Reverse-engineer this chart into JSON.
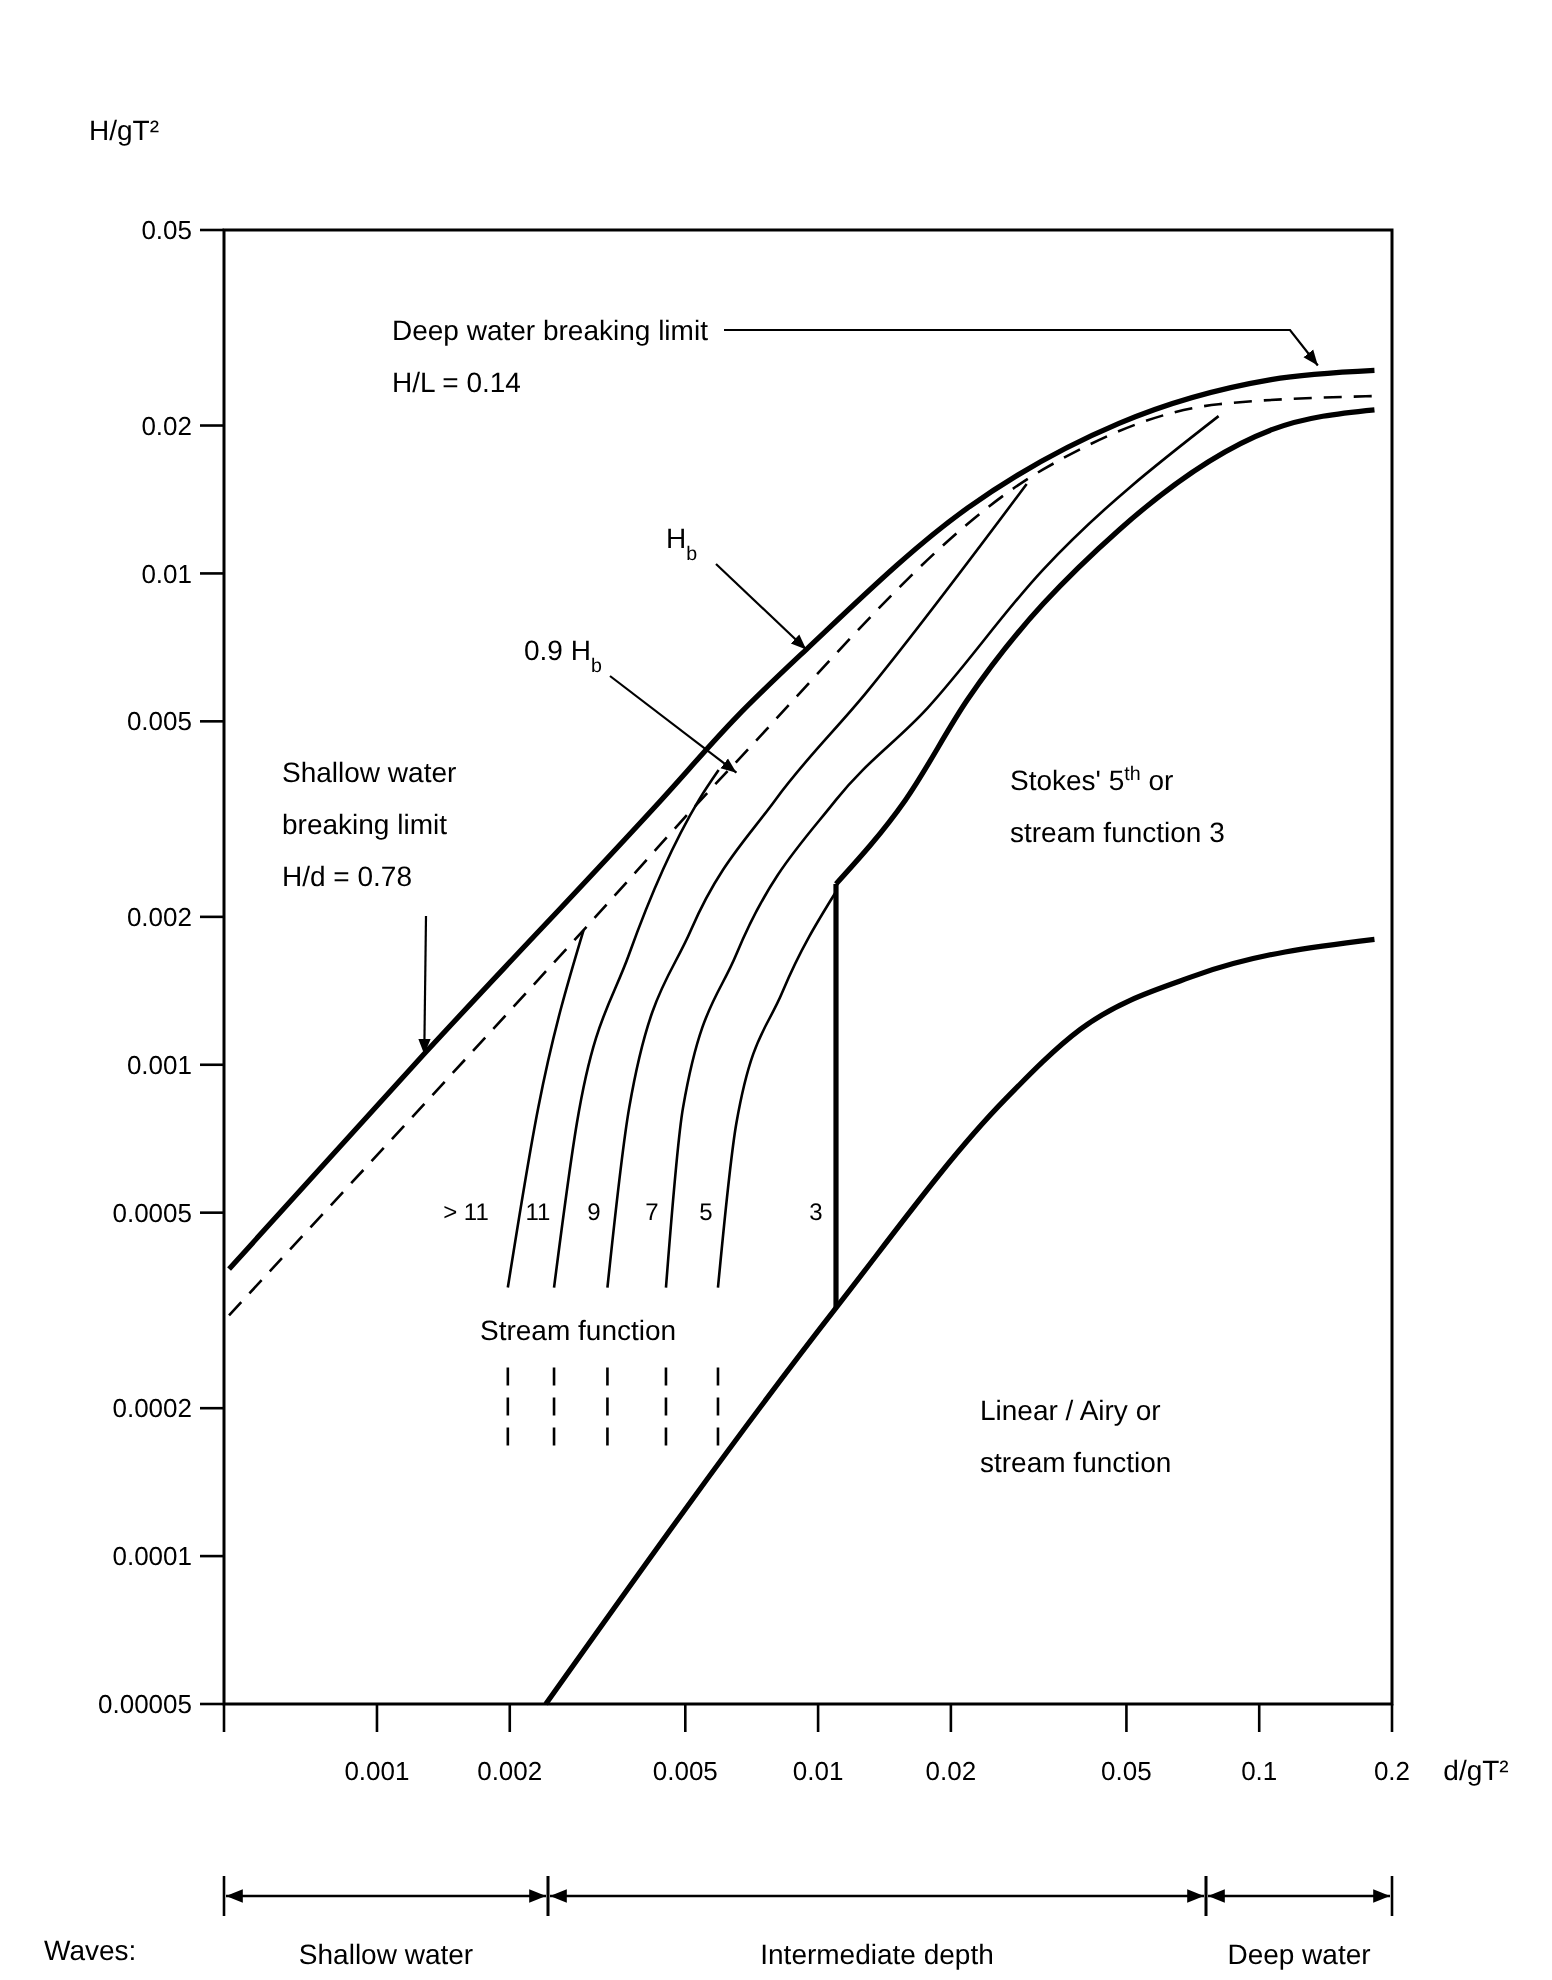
{
  "chart_data": {
    "type": "line",
    "xlabel": "d/gT²",
    "ylabel": "H/gT²",
    "log": "xy",
    "grid": false,
    "xlim": [
      0.00045,
      0.2
    ],
    "xticks": [
      {
        "value": 0.00045,
        "label": null
      },
      0.001,
      0.002,
      0.005,
      0.01,
      0.02,
      0.05,
      0.1,
      0.2
    ],
    "ylim": [
      5e-05,
      0.05
    ],
    "yticks": [
      {
        "value": 5e-05,
        "label": "0.00005"
      },
      0.0001,
      0.0002,
      0.0005,
      0.001,
      0.002,
      0.005,
      0.01,
      0.02,
      0.05
    ],
    "series": [
      {
        "color": "#000000",
        "line_style": "solid",
        "x": [
          0.000462,
          0.001277,
          0.00441,
          0.00653,
          0.0094,
          0.0218,
          0.0481,
          0.1064,
          0.1825
        ],
        "values": [
          0.000384,
          0.00105,
          0.00346,
          0.0051,
          0.007,
          0.01358,
          0.0202,
          0.0248,
          0.0259
        ]
      },
      {
        "color": "#000000",
        "line_style": "dashed",
        "x": [
          0.000462,
          0.00294,
          0.00627,
          0.0323,
          0.0809,
          0.1825
        ],
        "values": [
          0.000309,
          0.00188,
          0.00398,
          0.01626,
          0.0221,
          0.02296
        ]
      },
      {
        "color": "#000000",
        "line_style": "solid",
        "x": [
          0.01098,
          0.01578,
          0.0218,
          0.0481,
          0.1064,
          0.1825
        ],
        "values": [
          0.002334,
          0.00346,
          0.00553,
          0.01226,
          0.01959,
          0.02153
        ]
      },
      {
        "color": "#000000",
        "line_style": "solid",
        "x": [
          0.002414,
          0.01098,
          0.02651,
          0.0393,
          0.0718,
          0.1825
        ],
        "values": [
          5e-05,
          0.00032,
          0.000849,
          0.00118,
          0.00152,
          0.0018
        ]
      },
      {
        "color": "#000000",
        "line_style": "solid",
        "x": [
          0.01098,
          0.01098
        ],
        "values": [
          0.00032,
          0.002334
        ]
      },
      {
        "color": "#000000",
        "line_style": "solid",
        "x": [
          0.00198,
          0.00232,
          0.00294
        ],
        "values": [
          0.000352,
          0.000817,
          0.00188
        ]
      },
      {
        "color": "#000000",
        "line_style": "solid",
        "x": [
          0.00252,
          0.00284,
          0.00373,
          0.00537,
          0.00595
        ],
        "values": [
          0.000352,
          0.000762,
          0.00168,
          0.00346,
          0.00398
        ]
      },
      {
        "color": "#000000",
        "line_style": "solid",
        "x": [
          0.00333,
          0.00373,
          0.00515,
          0.008,
          0.0129,
          0.0297
        ],
        "values": [
          0.000352,
          0.000817,
          0.00188,
          0.00346,
          0.00574,
          0.0152
        ]
      },
      {
        "color": "#000000",
        "line_style": "solid",
        "x": [
          0.00452,
          0.00494,
          0.00653,
          0.01098,
          0.0177,
          0.0323,
          0.0809
        ],
        "values": [
          0.000352,
          0.000817,
          0.00168,
          0.00346,
          0.00532,
          0.01016,
          0.0209
        ]
      },
      {
        "color": "#000000",
        "line_style": "solid",
        "x": [
          0.00593,
          0.00653,
          0.0083,
          0.01098
        ],
        "values": [
          0.000352,
          0.000762,
          0.001406,
          0.00225
        ]
      },
      {
        "color": "#000000",
        "line_style": "dashed",
        "x": [
          0.00198,
          0.00198
        ],
        "values": [
          0.000242,
          0.000164
        ]
      },
      {
        "color": "#000000",
        "line_style": "dashed",
        "x": [
          0.00252,
          0.00252
        ],
        "values": [
          0.000242,
          0.000164
        ]
      },
      {
        "color": "#000000",
        "line_style": "dashed",
        "x": [
          0.00333,
          0.00333
        ],
        "values": [
          0.000242,
          0.000164
        ]
      },
      {
        "color": "#000000",
        "line_style": "dashed",
        "x": [
          0.00452,
          0.00452
        ],
        "values": [
          0.000242,
          0.000164
        ]
      },
      {
        "color": "#000000",
        "line_style": "dashed",
        "x": [
          0.00593,
          0.00593
        ],
        "values": [
          0.000242,
          0.000164
        ]
      }
    ],
    "annotations": [
      {
        "text": "Deep water breaking limit\nH/L = 0.14",
        "x": 0.1358,
        "y": 0.0265
      },
      {
        "text": "H$_{b}$",
        "x": 0.0094,
        "y": 0.007
      },
      {
        "text": "0.9 H$_{b}$",
        "x": 0.00653,
        "y": 0.00393
      },
      {
        "text": "Shallow water\nbreaking limit\nH/d = 0.78",
        "x": 0.00128,
        "y": 0.00105
      },
      "Stokes' 5$^{th}$ or\nstream function 3",
      "Linear / Airy or\nstream function",
      "Stream function",
      "> 11",
      "11",
      "9",
      "7",
      "5",
      "3",
      "Waves:",
      "Shallow water",
      "Intermediate depth",
      "Deep water"
    ]
  }
}
